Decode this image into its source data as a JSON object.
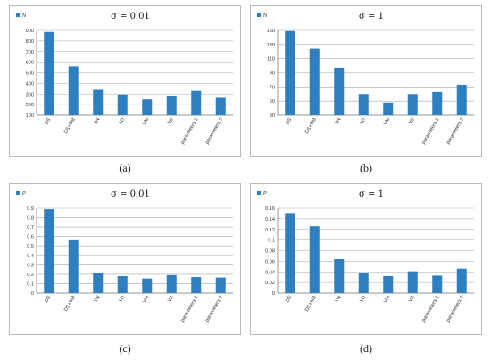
{
  "captions": [
    "(a)",
    "(b)",
    "(c)",
    "(d)"
  ],
  "colors": {
    "bar": "#2e7fc0",
    "grid": "#a9a9a9",
    "axis": "#7f7f7f"
  },
  "chart_data": [
    {
      "type": "bar",
      "title": "σ = 0.01",
      "legend": "N",
      "legend_position": "top-left",
      "categories": [
        "DS",
        "DS+MB",
        "VN",
        "LD",
        "VM",
        "VS",
        "parameters 1",
        "parameters 2"
      ],
      "series": [
        {
          "name": "N",
          "values": [
            885,
            560,
            340,
            295,
            250,
            285,
            330,
            265
          ]
        }
      ],
      "ylim": [
        100,
        900
      ],
      "yticks": [
        "100",
        "200",
        "300",
        "400",
        "500",
        "600",
        "700",
        "800",
        "900"
      ],
      "grid": true
    },
    {
      "type": "bar",
      "title": "σ = 1",
      "legend": "N",
      "legend_position": "top-left",
      "categories": [
        "DS",
        "DS+MB",
        "VN",
        "LD",
        "VM",
        "VS",
        "parameters 1",
        "parameters 2"
      ],
      "series": [
        {
          "name": "N",
          "values": [
            149,
            124,
            97,
            60,
            48,
            60,
            63,
            73
          ]
        }
      ],
      "ylim": [
        30,
        150
      ],
      "yticks": [
        "30",
        "50",
        "70",
        "90",
        "110",
        "130",
        "150"
      ],
      "grid": true
    },
    {
      "type": "bar",
      "title": "σ = 0.01",
      "legend": "P",
      "legend_position": "top-left",
      "categories": [
        "DS",
        "DS+MB",
        "VN",
        "LD",
        "VM",
        "VS",
        "parameters 1",
        "parameters 2"
      ],
      "series": [
        {
          "name": "P",
          "values": [
            0.89,
            0.56,
            0.21,
            0.18,
            0.155,
            0.19,
            0.17,
            0.165
          ]
        }
      ],
      "ylim": [
        0,
        0.9
      ],
      "yticks": [
        "0",
        "0.1",
        "0.2",
        "0.3",
        "0.4",
        "0.5",
        "0.6",
        "0.7",
        "0.8",
        "0.9"
      ],
      "grid": true
    },
    {
      "type": "bar",
      "title": "σ = 1",
      "legend": "P",
      "legend_position": "top-left",
      "categories": [
        "DS",
        "DS+MB",
        "VN",
        "LD",
        "VM",
        "VS",
        "parameters 1",
        "parameters 2"
      ],
      "series": [
        {
          "name": "P",
          "values": [
            0.151,
            0.126,
            0.064,
            0.037,
            0.032,
            0.041,
            0.033,
            0.046
          ]
        }
      ],
      "ylim": [
        0,
        0.16
      ],
      "yticks": [
        "0",
        "0.02",
        "0.04",
        "0.06",
        "0.08",
        "0.1",
        "0.12",
        "0.14",
        "0.16"
      ],
      "grid": true
    }
  ]
}
